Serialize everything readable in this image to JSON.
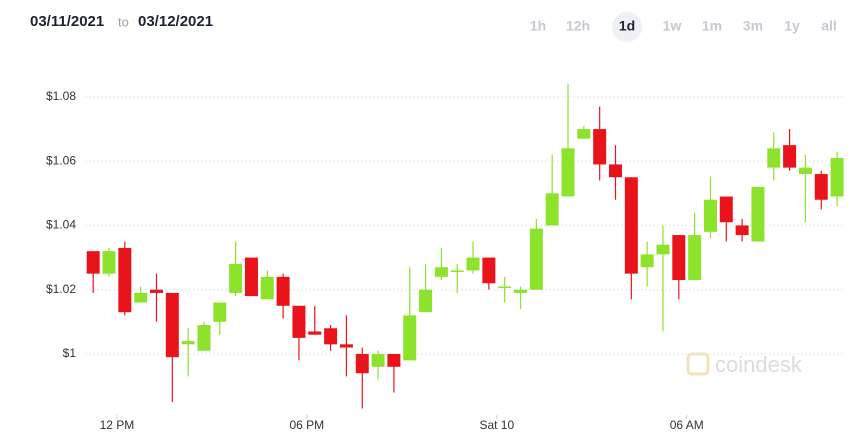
{
  "header": {
    "from": "03/11/2021",
    "separator": "to",
    "to": "03/12/2021",
    "ranges": [
      "1h",
      "12h",
      "1d",
      "1w",
      "1m",
      "3m",
      "1y",
      "all"
    ],
    "selected_range": "1d"
  },
  "watermark": "coindesk",
  "chart_data": {
    "type": "candlestick",
    "up_color": "#8de22b",
    "down_color": "#e9141b",
    "grid": true,
    "x": [
      11.25,
      11.75,
      12.25,
      12.75,
      13.25,
      13.75,
      14.25,
      14.75,
      15.25,
      15.75,
      16.25,
      16.75,
      17.25,
      17.75,
      18.25,
      18.75,
      19.25,
      19.75,
      20.25,
      20.75,
      21.25,
      21.75,
      22.25,
      22.75,
      23.25,
      23.75,
      24.25,
      24.75,
      25.25,
      25.75,
      26.25,
      26.75,
      27.25,
      27.75,
      28.25,
      28.75,
      29.25,
      29.75,
      30.25,
      30.75,
      31.25,
      31.75,
      32.25,
      32.75,
      33.25,
      33.75,
      34.25,
      34.75
    ],
    "open": [
      1.032,
      1.025,
      1.033,
      1.016,
      1.02,
      1.019,
      1.003,
      1.001,
      1.01,
      1.019,
      1.03,
      1.017,
      1.024,
      1.015,
      1.007,
      1.008,
      1.003,
      1.0,
      0.996,
      1.0,
      0.998,
      1.013,
      1.024,
      1.026,
      1.026,
      1.03,
      1.021,
      1.019,
      1.02,
      1.04,
      1.049,
      1.067,
      1.07,
      1.059,
      1.055,
      1.027,
      1.031,
      1.037,
      1.023,
      1.038,
      1.049,
      1.04,
      1.035,
      1.058,
      1.065,
      1.056,
      1.056,
      1.049
    ],
    "high": [
      1.032,
      1.033,
      1.035,
      1.021,
      1.025,
      1.019,
      1.008,
      1.01,
      1.016,
      1.035,
      1.03,
      1.026,
      1.025,
      1.015,
      1.015,
      1.009,
      1.012,
      1.002,
      1.001,
      1.0,
      1.027,
      1.028,
      1.033,
      1.028,
      1.035,
      1.03,
      1.024,
      1.021,
      1.042,
      1.062,
      1.084,
      1.071,
      1.077,
      1.065,
      1.055,
      1.035,
      1.04,
      1.037,
      1.044,
      1.055,
      1.049,
      1.042,
      1.052,
      1.069,
      1.07,
      1.062,
      1.057,
      1.063
    ],
    "low": [
      1.019,
      1.024,
      1.012,
      1.016,
      1.01,
      0.985,
      0.993,
      1.001,
      1.006,
      1.018,
      1.018,
      1.017,
      1.011,
      0.998,
      1.006,
      1.001,
      0.993,
      0.983,
      0.992,
      0.988,
      0.998,
      1.013,
      1.023,
      1.019,
      1.025,
      1.02,
      1.016,
      1.014,
      1.02,
      1.04,
      1.049,
      1.067,
      1.054,
      1.048,
      1.017,
      1.021,
      1.007,
      1.017,
      1.023,
      1.036,
      1.035,
      1.035,
      1.035,
      1.054,
      1.057,
      1.041,
      1.045,
      1.046
    ],
    "close": [
      1.025,
      1.032,
      1.013,
      1.019,
      1.019,
      0.999,
      1.004,
      1.009,
      1.016,
      1.028,
      1.018,
      1.024,
      1.015,
      1.005,
      1.006,
      1.003,
      1.002,
      0.994,
      1.0,
      0.996,
      1.012,
      1.02,
      1.027,
      1.026,
      1.03,
      1.022,
      1.021,
      1.02,
      1.039,
      1.05,
      1.064,
      1.07,
      1.059,
      1.055,
      1.025,
      1.031,
      1.034,
      1.023,
      1.037,
      1.048,
      1.041,
      1.037,
      1.052,
      1.064,
      1.058,
      1.058,
      1.048,
      1.061
    ],
    "xlim": [
      9.57,
      35
    ],
    "ylim": [
      0.981,
      1.0915
    ],
    "xticks": [
      {
        "value": 12,
        "label": "12 PM"
      },
      {
        "value": 18,
        "label": "06 PM"
      },
      {
        "value": 24,
        "label": "Sat 10"
      },
      {
        "value": 30,
        "label": "06 AM"
      }
    ],
    "yticks": [
      {
        "value": 1,
        "label": "$1"
      },
      {
        "value": 1.02,
        "label": "$1.02"
      },
      {
        "value": 1.04,
        "label": "$1.04"
      },
      {
        "value": 1.06,
        "label": "$1.06"
      },
      {
        "value": 1.08,
        "label": "$1.08"
      }
    ]
  }
}
